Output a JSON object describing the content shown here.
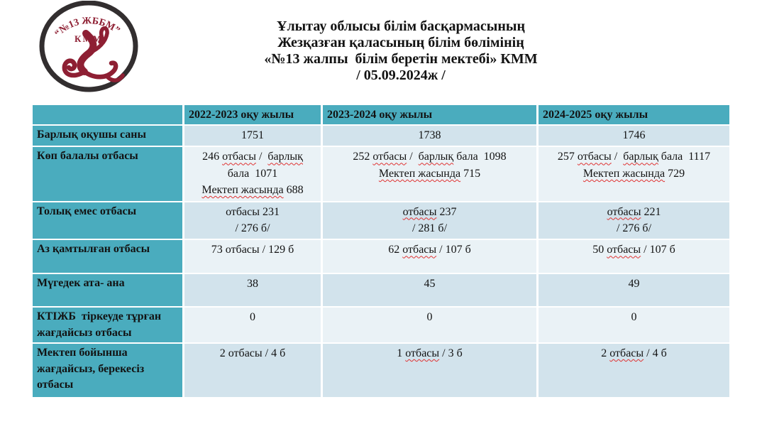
{
  "colors": {
    "page_bg": "#ffffff",
    "teal": "#4aacbe",
    "band_dark": "#d2e3ec",
    "band_light": "#eaf2f6",
    "text": "#121212",
    "spell": "#e03131",
    "logo_ring": "#322e2f",
    "logo_maroon": "#8e1f33"
  },
  "logo": {
    "arc_text": "“№13 ЖББМ”",
    "sub_text": "КММ",
    "emblem": "kazakh-ornament"
  },
  "title": {
    "lines": [
      "Ұлытау облысы білім басқармасының",
      "Жезқазған қаласының білім бөлімінің",
      "«№13 жалпы  білім беретін мектебі» КММ",
      "/ 05.09.2024ж /"
    ]
  },
  "table": {
    "columns": [
      "",
      "2022-2023 оқу жылы",
      "2023-2024 оқу жылы",
      "2024-2025 оқу жылы"
    ],
    "rows": [
      {
        "label": "Барлық оқушы саны",
        "cells": [
          [
            [
              {
                "t": "1751"
              }
            ]
          ],
          [
            [
              {
                "t": "1738"
              }
            ]
          ],
          [
            [
              {
                "t": "1746"
              }
            ]
          ]
        ]
      },
      {
        "label": "Көп балалы отбасы",
        "cells": [
          [
            [
              {
                "t": "246 "
              },
              {
                "t": "отбасы",
                "w": true
              },
              {
                "t": " /  "
              },
              {
                "t": "барлық",
                "w": true
              }
            ],
            [
              {
                "t": "бала  1071"
              }
            ],
            [
              {
                "t": "Мектеп жасында",
                "w": true
              },
              {
                "t": " 688"
              }
            ]
          ],
          [
            [
              {
                "t": "252 "
              },
              {
                "t": "отбасы",
                "w": true
              },
              {
                "t": " /  "
              },
              {
                "t": "барлық",
                "w": true
              },
              {
                "t": " бала  1098"
              }
            ],
            [
              {
                "t": "Мектеп жасында",
                "w": true
              },
              {
                "t": " 715"
              }
            ]
          ],
          [
            [
              {
                "t": "257 "
              },
              {
                "t": "отбасы",
                "w": true
              },
              {
                "t": " /  "
              },
              {
                "t": "барлық",
                "w": true
              },
              {
                "t": " бала  1117"
              }
            ],
            [
              {
                "t": "Мектеп жасында",
                "w": true
              },
              {
                "t": " 729"
              }
            ]
          ]
        ]
      },
      {
        "label": "Толық емес отбасы",
        "cells": [
          [
            [
              {
                "t": "отбасы 231"
              }
            ],
            [
              {
                "t": "/ 276 б/"
              }
            ]
          ],
          [
            [
              {
                "t": "отбасы",
                "w": true
              },
              {
                "t": " 237"
              }
            ],
            [
              {
                "t": "/ 281 б/"
              }
            ]
          ],
          [
            [
              {
                "t": "отбасы",
                "w": true
              },
              {
                "t": " 221"
              }
            ],
            [
              {
                "t": "/ 276 б/"
              }
            ]
          ]
        ]
      },
      {
        "label": "Аз қамтылған отбасы",
        "cells": [
          [
            [
              {
                "t": "73 отбасы / 129 б"
              }
            ]
          ],
          [
            [
              {
                "t": "62 "
              },
              {
                "t": "отбасы",
                "w": true
              },
              {
                "t": " / 107 б"
              }
            ]
          ],
          [
            [
              {
                "t": "50 "
              },
              {
                "t": "отбасы",
                "w": true
              },
              {
                "t": " / 107 б"
              }
            ]
          ]
        ]
      },
      {
        "label": "Мүгедек ата- ана",
        "cells": [
          [
            [
              {
                "t": "38"
              }
            ]
          ],
          [
            [
              {
                "t": "45"
              }
            ]
          ],
          [
            [
              {
                "t": "49"
              }
            ]
          ]
        ]
      },
      {
        "label": "КТІЖБ  тіркеуде тұрған\nжағдайсыз отбасы",
        "cells": [
          [
            [
              {
                "t": "0"
              }
            ]
          ],
          [
            [
              {
                "t": "0"
              }
            ]
          ],
          [
            [
              {
                "t": "0"
              }
            ]
          ]
        ]
      },
      {
        "label": "Мектеп бойынша\nжағдайсыз, берекесіз\nотбасы",
        "cells": [
          [
            [
              {
                "t": "2 отбасы / 4 б"
              }
            ]
          ],
          [
            [
              {
                "t": "1 "
              },
              {
                "t": "отбасы",
                "w": true
              },
              {
                "t": " / 3 б"
              }
            ]
          ],
          [
            [
              {
                "t": "2 "
              },
              {
                "t": "отбасы",
                "w": true
              },
              {
                "t": " / 4 б"
              }
            ]
          ]
        ]
      }
    ]
  }
}
